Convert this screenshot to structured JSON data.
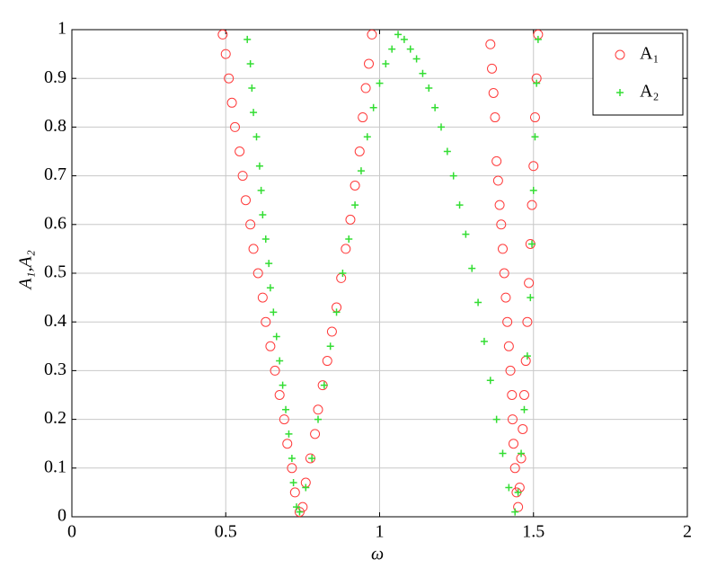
{
  "chart_data": {
    "type": "scatter",
    "x_label": "ω",
    "y_label": "A₁,A₂",
    "xlim": [
      0,
      2
    ],
    "ylim": [
      0,
      1
    ],
    "xticks": [
      0,
      0.5,
      1,
      1.5,
      2
    ],
    "yticks": [
      0,
      0.1,
      0.2,
      0.3,
      0.4,
      0.5,
      0.6,
      0.7,
      0.8,
      0.9,
      1
    ],
    "grid": true,
    "legend": "upper right",
    "series": [
      {
        "name": "A₁",
        "color": "#ff3b3b",
        "marker": "circle",
        "x": [
          0.49,
          0.5,
          0.51,
          0.52,
          0.53,
          0.545,
          0.555,
          0.565,
          0.58,
          0.59,
          0.605,
          0.62,
          0.63,
          0.645,
          0.66,
          0.675,
          0.69,
          0.7,
          0.715,
          0.725,
          0.74,
          0.75,
          0.76,
          0.775,
          0.79,
          0.8,
          0.815,
          0.83,
          0.845,
          0.86,
          0.875,
          0.89,
          0.905,
          0.92,
          0.935,
          0.945,
          0.955,
          0.965,
          0.975,
          1.36,
          1.365,
          1.37,
          1.375,
          1.38,
          1.385,
          1.39,
          1.395,
          1.4,
          1.405,
          1.41,
          1.415,
          1.42,
          1.425,
          1.43,
          1.432,
          1.435,
          1.44,
          1.445,
          1.45,
          1.455,
          1.46,
          1.465,
          1.47,
          1.475,
          1.48,
          1.485,
          1.49,
          1.495,
          1.5,
          1.505,
          1.51,
          1.515
        ],
        "values": [
          0.99,
          0.95,
          0.9,
          0.85,
          0.8,
          0.75,
          0.7,
          0.65,
          0.6,
          0.55,
          0.5,
          0.45,
          0.4,
          0.35,
          0.3,
          0.25,
          0.2,
          0.15,
          0.1,
          0.05,
          0.01,
          0.02,
          0.07,
          0.12,
          0.17,
          0.22,
          0.27,
          0.32,
          0.38,
          0.43,
          0.49,
          0.55,
          0.61,
          0.68,
          0.75,
          0.82,
          0.88,
          0.93,
          0.99,
          0.97,
          0.92,
          0.87,
          0.82,
          0.73,
          0.69,
          0.64,
          0.6,
          0.55,
          0.5,
          0.45,
          0.4,
          0.35,
          0.3,
          0.25,
          0.2,
          0.15,
          0.1,
          0.05,
          0.02,
          0.06,
          0.12,
          0.18,
          0.25,
          0.32,
          0.4,
          0.48,
          0.56,
          0.64,
          0.72,
          0.82,
          0.9,
          0.99
        ]
      },
      {
        "name": "A₂",
        "color": "#33dd33",
        "marker": "plus",
        "x": [
          0.57,
          0.58,
          0.585,
          0.59,
          0.6,
          0.61,
          0.615,
          0.62,
          0.63,
          0.64,
          0.645,
          0.655,
          0.665,
          0.675,
          0.685,
          0.695,
          0.705,
          0.715,
          0.72,
          0.73,
          0.74,
          0.76,
          0.78,
          0.8,
          0.82,
          0.84,
          0.86,
          0.88,
          0.9,
          0.92,
          0.94,
          0.96,
          0.98,
          1,
          1.02,
          1.04,
          1.06,
          1.08,
          1.1,
          1.12,
          1.14,
          1.16,
          1.18,
          1.2,
          1.22,
          1.24,
          1.26,
          1.28,
          1.3,
          1.32,
          1.34,
          1.36,
          1.38,
          1.4,
          1.42,
          1.44,
          1.45,
          1.46,
          1.47,
          1.48,
          1.49,
          1.495,
          1.5,
          1.505,
          1.51,
          1.515
        ],
        "values": [
          0.98,
          0.93,
          0.88,
          0.83,
          0.78,
          0.72,
          0.67,
          0.62,
          0.57,
          0.52,
          0.47,
          0.42,
          0.37,
          0.32,
          0.27,
          0.22,
          0.17,
          0.12,
          0.07,
          0.02,
          0.01,
          0.06,
          0.12,
          0.2,
          0.27,
          0.35,
          0.42,
          0.5,
          0.57,
          0.64,
          0.71,
          0.78,
          0.84,
          0.89,
          0.93,
          0.96,
          0.99,
          0.98,
          0.96,
          0.94,
          0.91,
          0.88,
          0.84,
          0.8,
          0.75,
          0.7,
          0.64,
          0.58,
          0.51,
          0.44,
          0.36,
          0.28,
          0.2,
          0.13,
          0.06,
          0.01,
          0.05,
          0.13,
          0.22,
          0.33,
          0.45,
          0.56,
          0.67,
          0.78,
          0.89,
          0.98
        ]
      }
    ]
  }
}
